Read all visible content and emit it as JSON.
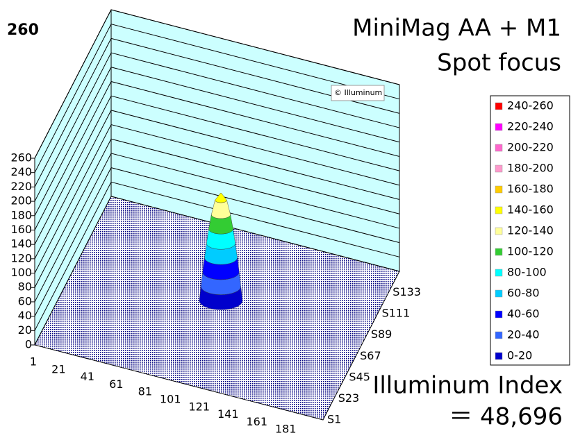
{
  "chart_data": {
    "type": "surface",
    "corner_label": "260",
    "title": "MiniMag AA + M1",
    "subtitle": "Spot focus",
    "watermark": "© Illuminum",
    "index_label": "Illuminum Index",
    "index_value": "＝ 48,696",
    "x_categories": [
      "1",
      "21",
      "41",
      "61",
      "81",
      "101",
      "121",
      "141",
      "161",
      "181"
    ],
    "y_categories": [
      "S1",
      "S23",
      "S45",
      "S67",
      "S89",
      "S111",
      "S133"
    ],
    "zlim": [
      0,
      260
    ],
    "zticks": [
      0,
      20,
      40,
      60,
      80,
      100,
      120,
      140,
      160,
      180,
      200,
      220,
      240,
      260
    ],
    "peak": 150,
    "wall_color": "#ccffff",
    "floor_color": "#000080",
    "series": [
      {
        "name": "240-260",
        "color": "#ff0000",
        "range": [
          240,
          260
        ]
      },
      {
        "name": "220-240",
        "color": "#ff00ff",
        "range": [
          220,
          240
        ]
      },
      {
        "name": "200-220",
        "color": "#ff66cc",
        "range": [
          200,
          220
        ]
      },
      {
        "name": "180-200",
        "color": "#ff99cc",
        "range": [
          180,
          200
        ]
      },
      {
        "name": "160-180",
        "color": "#ffcc00",
        "range": [
          160,
          180
        ]
      },
      {
        "name": "140-160",
        "color": "#ffff00",
        "range": [
          140,
          160
        ]
      },
      {
        "name": "120-140",
        "color": "#ffff99",
        "range": [
          120,
          140
        ]
      },
      {
        "name": "100-120",
        "color": "#33cc33",
        "range": [
          100,
          120
        ]
      },
      {
        "name": "80-100",
        "color": "#00ffff",
        "range": [
          80,
          100
        ]
      },
      {
        "name": "60-80",
        "color": "#00ccff",
        "range": [
          60,
          80
        ]
      },
      {
        "name": "40-60",
        "color": "#0000ff",
        "range": [
          40,
          60
        ]
      },
      {
        "name": "20-40",
        "color": "#3366ff",
        "range": [
          20,
          40
        ]
      },
      {
        "name": "0-20",
        "color": "#0000cc",
        "range": [
          0,
          20
        ]
      }
    ]
  }
}
